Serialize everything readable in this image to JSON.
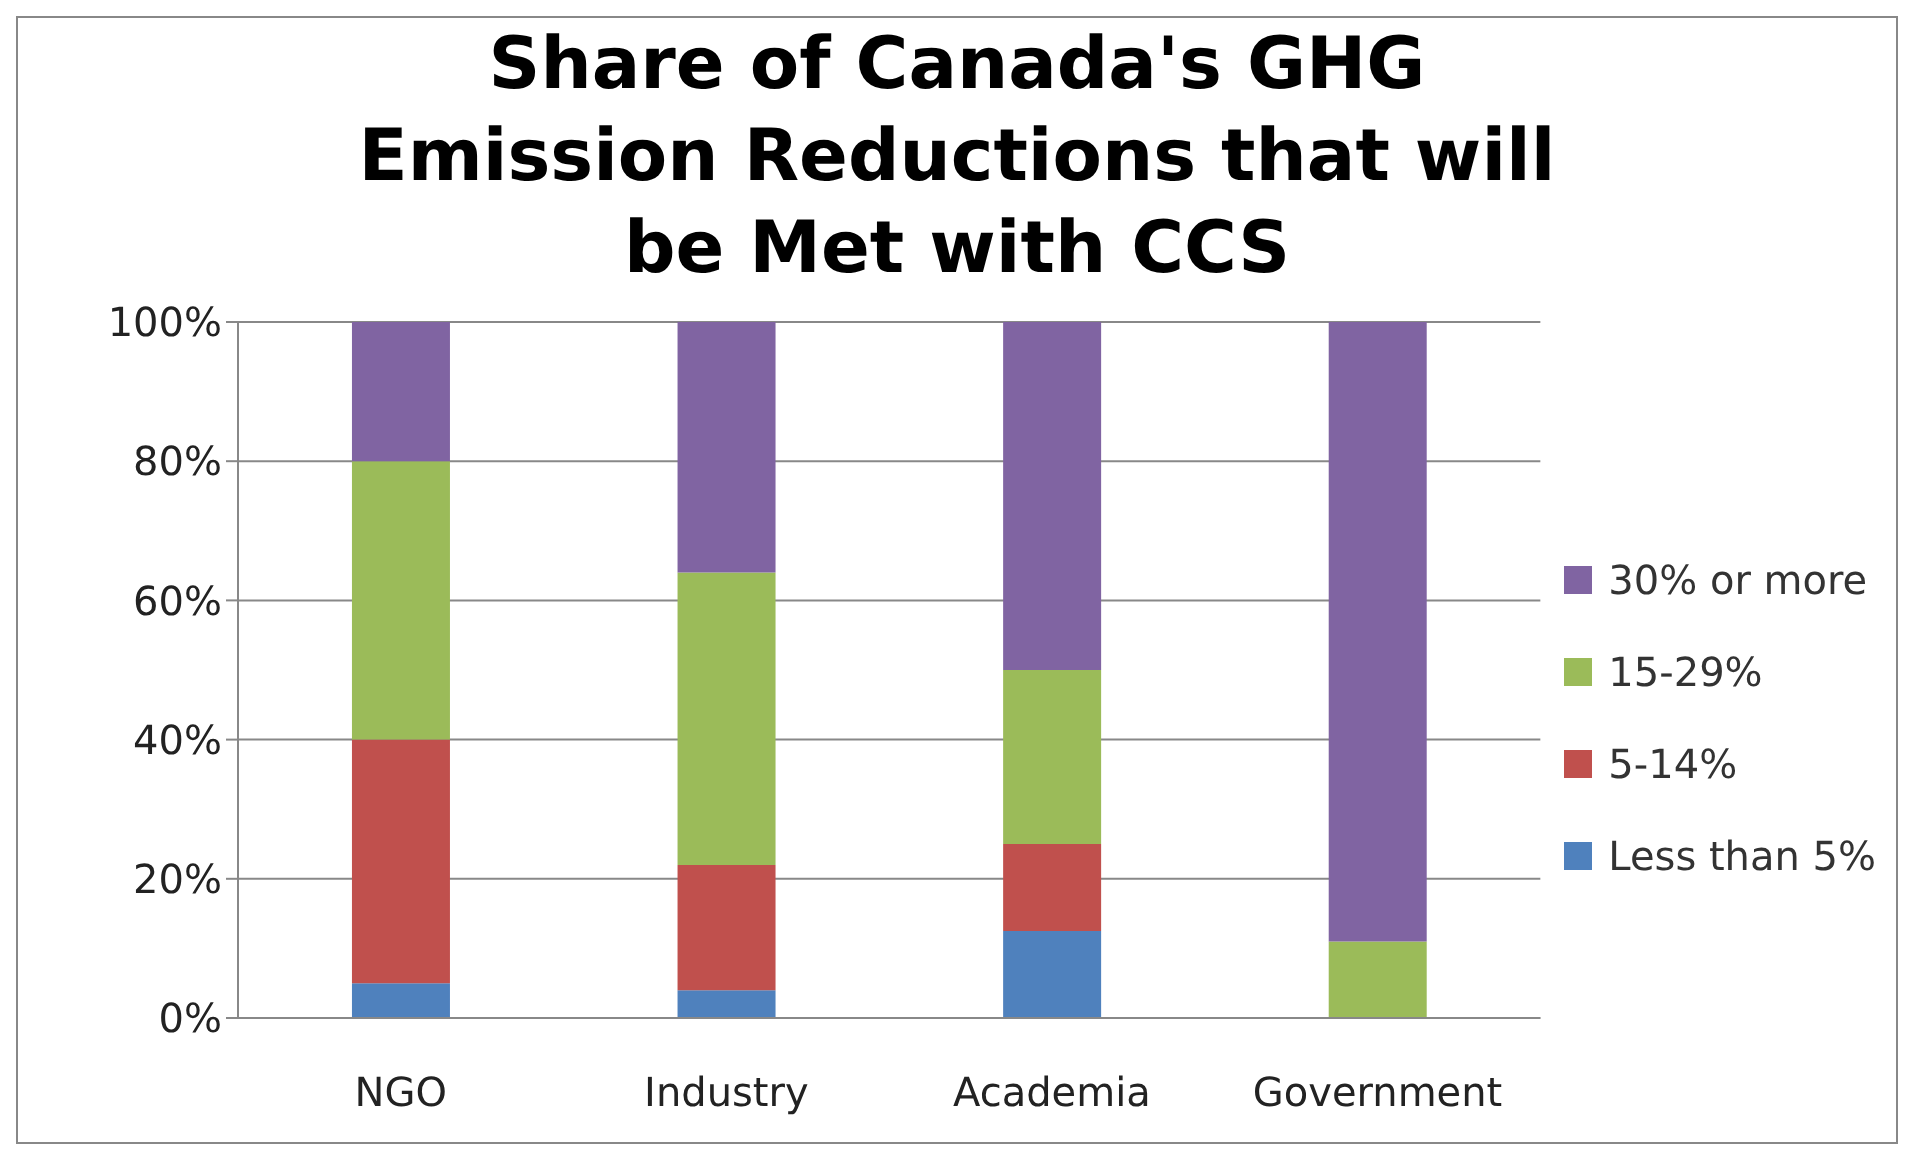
{
  "chart_data": {
    "type": "bar",
    "title": "Share of Canada's GHG Emission Reductions that will be Met with CCS",
    "categories": [
      "NGO",
      "Industry",
      "Academia",
      "Government"
    ],
    "stacked": true,
    "series": [
      {
        "name": "Less than 5%",
        "color": "#4f81bd",
        "values": [
          5,
          4,
          12.5,
          0
        ]
      },
      {
        "name": "5-14%",
        "color": "#c0504d",
        "values": [
          35,
          18,
          12.5,
          0
        ]
      },
      {
        "name": "15-29%",
        "color": "#9bbb59",
        "values": [
          40,
          42,
          25,
          11
        ]
      },
      {
        "name": "30% or more",
        "color": "#8064a2",
        "values": [
          20,
          36,
          50,
          89
        ]
      }
    ],
    "ylim": [
      0,
      100
    ],
    "yticks": [
      {
        "value": 0,
        "label": "0%"
      },
      {
        "value": 20,
        "label": "20%"
      },
      {
        "value": 40,
        "label": "40%"
      },
      {
        "value": 60,
        "label": "60%"
      },
      {
        "value": 80,
        "label": "80%"
      },
      {
        "value": 100,
        "label": "100%"
      }
    ],
    "grid": "y",
    "legend": "right"
  }
}
